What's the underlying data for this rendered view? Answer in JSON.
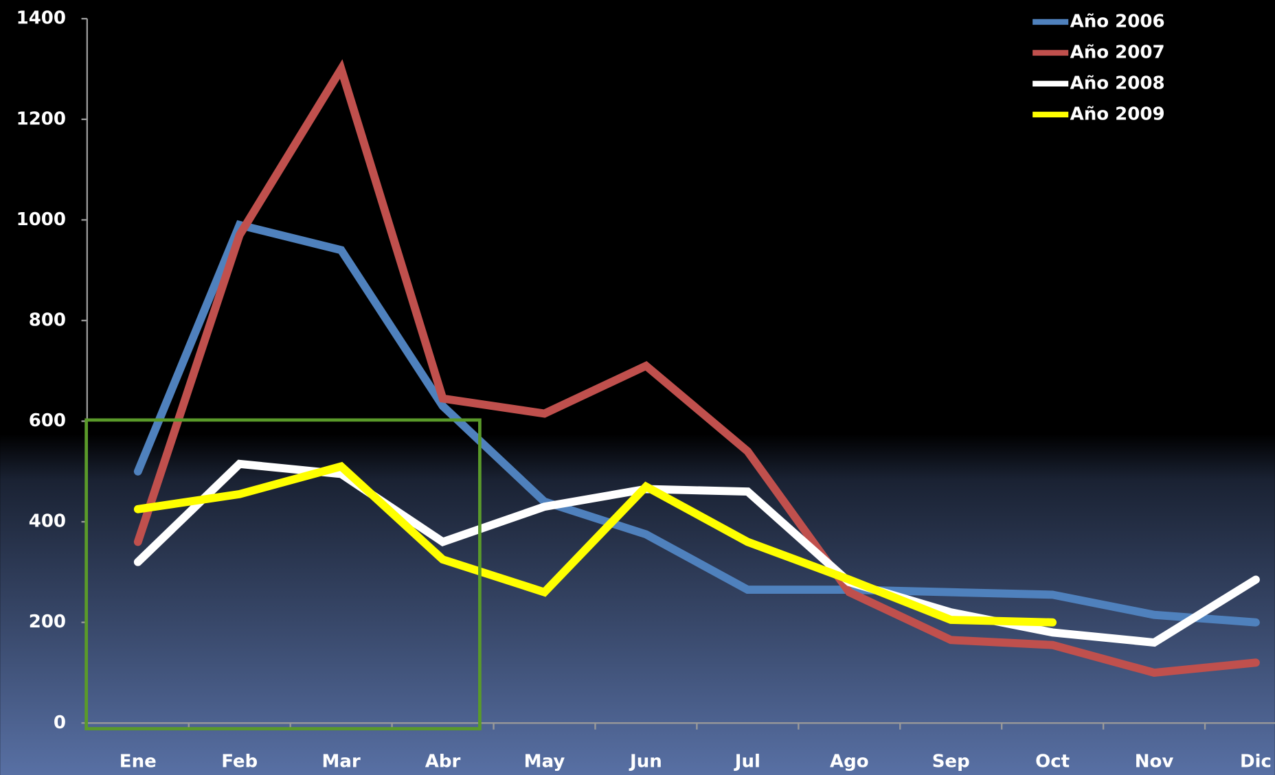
{
  "chart_data": {
    "type": "line",
    "categories": [
      "Ene",
      "Feb",
      "Mar",
      "Abr",
      "May",
      "Jun",
      "Jul",
      "Ago",
      "Sep",
      "Oct",
      "Nov",
      "Dic"
    ],
    "series": [
      {
        "name": "Año 2006",
        "color": "#4f81bd",
        "values": [
          500,
          990,
          940,
          630,
          440,
          375,
          265,
          265,
          260,
          255,
          215,
          200
        ]
      },
      {
        "name": "Año 2007",
        "color": "#c0504d",
        "values": [
          360,
          970,
          1300,
          645,
          615,
          710,
          540,
          260,
          165,
          155,
          100,
          120
        ]
      },
      {
        "name": "Año 2008",
        "color": "#ffffff",
        "values": [
          320,
          515,
          495,
          360,
          430,
          465,
          460,
          280,
          220,
          180,
          160,
          285
        ]
      },
      {
        "name": "Año 2009",
        "color": "#ffff00",
        "values": [
          425,
          455,
          510,
          325,
          260,
          470,
          360,
          285,
          205,
          200,
          null,
          null
        ]
      }
    ],
    "ylim": [
      0,
      1400
    ],
    "yticks": [
      0,
      200,
      400,
      600,
      800,
      1000,
      1200,
      1400
    ],
    "grid": false,
    "legend": "top-right"
  }
}
